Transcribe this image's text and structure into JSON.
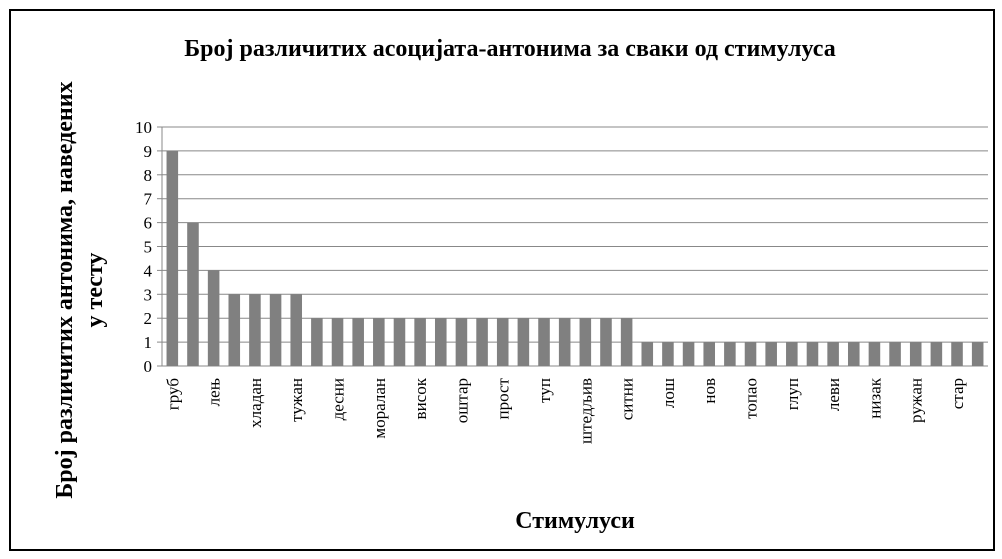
{
  "chart_data": {
    "type": "bar",
    "title": "Број различитих асоцијата-антонима за сваки од стимулуса",
    "y_label": "Број различитих антонима, наведених у тесту",
    "x_label": "Стимулуси",
    "categories": [
      "груб",
      null,
      "лењ",
      null,
      "хладан",
      null,
      "тужан",
      null,
      "десни",
      null,
      "моралан",
      null,
      "висок",
      null,
      "оштар",
      null,
      "прост",
      null,
      "туп",
      null,
      "штедљив",
      null,
      "ситни",
      null,
      "лош",
      null,
      "нов",
      null,
      "топао",
      null,
      "глуп",
      null,
      "леви",
      null,
      "низак",
      null,
      "ружан",
      null,
      "стар",
      null
    ],
    "values": [
      9,
      6,
      4,
      3,
      3,
      3,
      3,
      2,
      2,
      2,
      2,
      2,
      2,
      2,
      2,
      2,
      2,
      2,
      2,
      2,
      2,
      2,
      2,
      1,
      1,
      1,
      1,
      1,
      1,
      1,
      1,
      1,
      1,
      1,
      1,
      1,
      1,
      1,
      1,
      1
    ],
    "color": "#808080",
    "ylim": [
      0,
      10
    ],
    "yticks": [
      0,
      1,
      2,
      3,
      4,
      5,
      6,
      7,
      8,
      9,
      10
    ],
    "grid": true
  }
}
